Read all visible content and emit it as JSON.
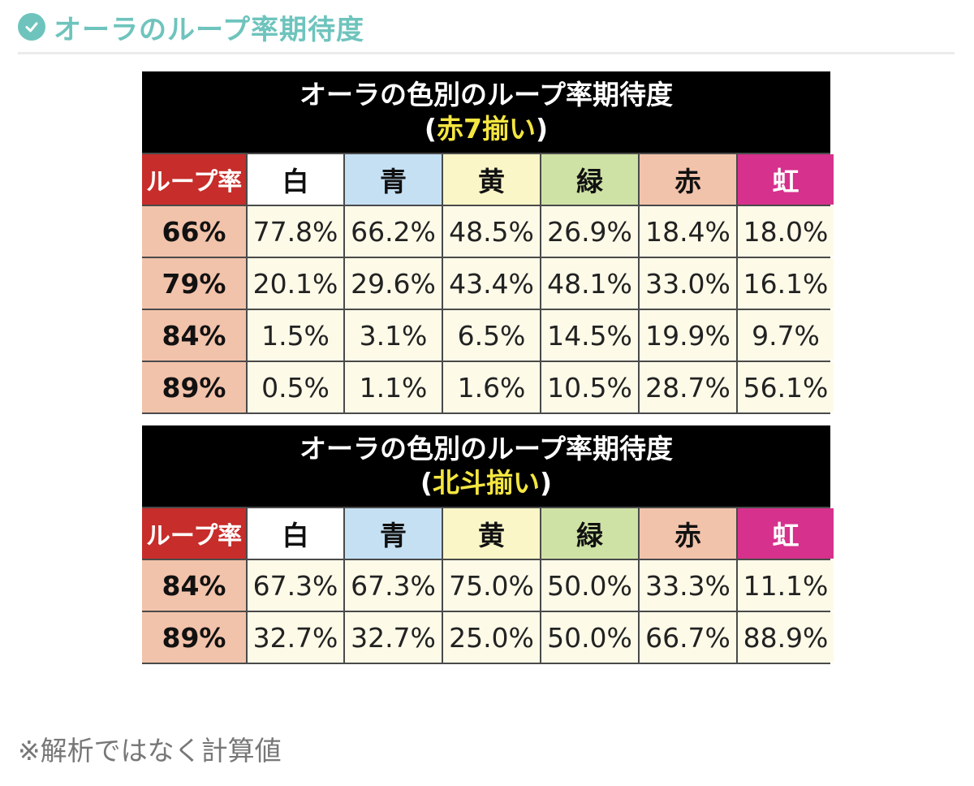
{
  "heading": "オーラのループ率期待度",
  "colors": {
    "accent": "#6ec4bd"
  },
  "tables": [
    {
      "title": "オーラの色別のループ率期待度",
      "subtitle_open": "(",
      "subtitle_mark": "赤7揃い",
      "subtitle_close": ")",
      "headers": [
        "ループ率",
        "白",
        "青",
        "黄",
        "緑",
        "赤",
        "虹"
      ],
      "rows": [
        [
          "66%",
          "77.8%",
          "66.2%",
          "48.5%",
          "26.9%",
          "18.4%",
          "18.0%"
        ],
        [
          "79%",
          "20.1%",
          "29.6%",
          "43.4%",
          "48.1%",
          "33.0%",
          "16.1%"
        ],
        [
          "84%",
          "1.5%",
          "3.1%",
          "6.5%",
          "14.5%",
          "19.9%",
          "9.7%"
        ],
        [
          "89%",
          "0.5%",
          "1.1%",
          "1.6%",
          "10.5%",
          "28.7%",
          "56.1%"
        ]
      ]
    },
    {
      "title": "オーラの色別のループ率期待度",
      "subtitle_open": "(",
      "subtitle_mark": "北斗揃い",
      "subtitle_close": ")",
      "headers": [
        "ループ率",
        "白",
        "青",
        "黄",
        "緑",
        "赤",
        "虹"
      ],
      "rows": [
        [
          "84%",
          "67.3%",
          "67.3%",
          "75.0%",
          "50.0%",
          "33.3%",
          "11.1%"
        ],
        [
          "89%",
          "32.7%",
          "32.7%",
          "25.0%",
          "50.0%",
          "66.7%",
          "88.9%"
        ]
      ]
    }
  ],
  "note": "※解析ではなく計算値"
}
